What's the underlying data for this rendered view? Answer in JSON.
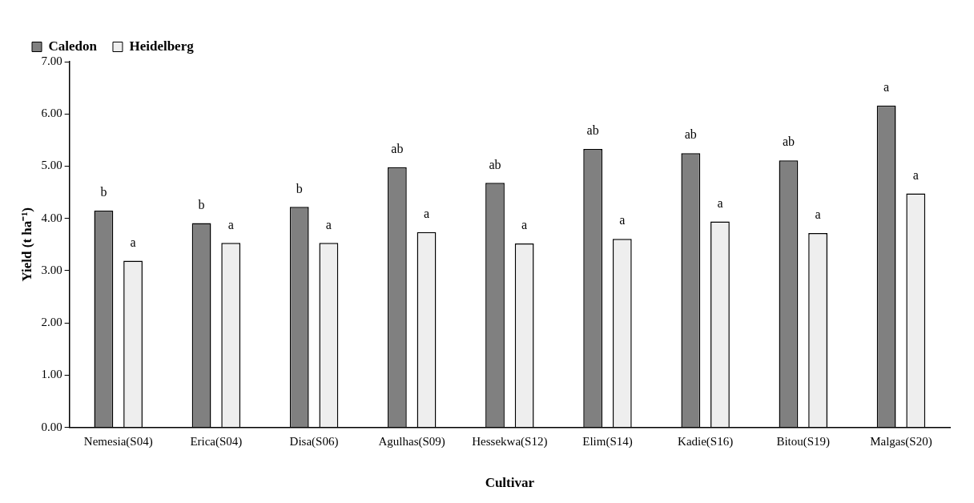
{
  "chart_data": {
    "type": "bar",
    "xlabel": "Cultivar",
    "ylabel": "Yield (t ha⁻¹)",
    "categories": [
      "Nemesia(S04)",
      "Erica(S04)",
      "Disa(S06)",
      "Agulhas(S09)",
      "Hessekwa(S12)",
      "Elim(S14)",
      "Kadie(S16)",
      "Bitou(S19)",
      "Malgas(S20)"
    ],
    "series": [
      {
        "name": "Caledon",
        "color": "#808080",
        "values": [
          4.15,
          3.91,
          4.22,
          4.98,
          4.68,
          5.33,
          5.25,
          5.11,
          6.16
        ],
        "value_labels": [
          "b",
          "b",
          "b",
          "ab",
          "ab",
          "ab",
          "ab",
          "ab",
          "a"
        ]
      },
      {
        "name": "Heidelberg",
        "color": "#eeeeee",
        "values": [
          3.19,
          3.53,
          3.53,
          3.74,
          3.52,
          3.61,
          3.94,
          3.72,
          4.48
        ],
        "value_labels": [
          "a",
          "a",
          "a",
          "a",
          "a",
          "a",
          "a",
          "a",
          "a"
        ]
      }
    ],
    "ylim": [
      0,
      7
    ],
    "yticks": [
      {
        "value": 0,
        "label": "0.00"
      },
      {
        "value": 1,
        "label": "1.00"
      },
      {
        "value": 2,
        "label": "2.00"
      },
      {
        "value": 3,
        "label": "3.00"
      },
      {
        "value": 4,
        "label": "4.00"
      },
      {
        "value": 5,
        "label": "5.00"
      },
      {
        "value": 6,
        "label": "6.00"
      },
      {
        "value": 7,
        "label": "7.00"
      }
    ],
    "grid": false,
    "legend": "top left"
  }
}
